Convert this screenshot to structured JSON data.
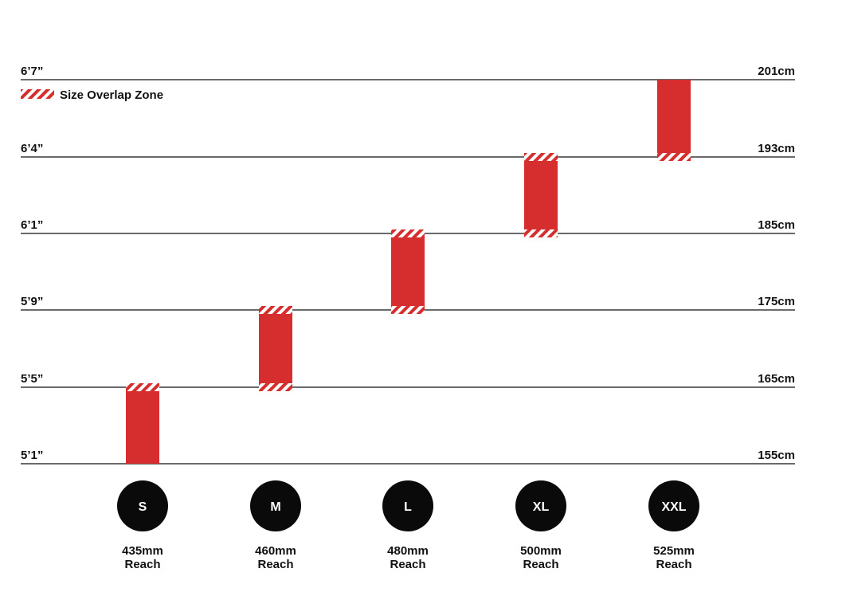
{
  "chart_data": {
    "type": "bar",
    "subtype": "floating-range",
    "legend": {
      "label": "Size Overlap Zone",
      "placement": "top-left"
    },
    "y_levels": [
      {
        "in": "5’1”",
        "cm": "155cm"
      },
      {
        "in": "5’5”",
        "cm": "165cm"
      },
      {
        "in": "5’9”",
        "cm": "175cm"
      },
      {
        "in": "6’1”",
        "cm": "185cm"
      },
      {
        "in": "6’4”",
        "cm": "193cm"
      },
      {
        "in": "6’7”",
        "cm": "201cm"
      }
    ],
    "sizes": [
      {
        "label": "S",
        "reach": "435mm",
        "reach_word": "Reach",
        "from_level": 0,
        "to_level": 1,
        "overlap_bottom": false,
        "overlap_top": true
      },
      {
        "label": "M",
        "reach": "460mm",
        "reach_word": "Reach",
        "from_level": 1,
        "to_level": 2,
        "overlap_bottom": true,
        "overlap_top": true
      },
      {
        "label": "L",
        "reach": "480mm",
        "reach_word": "Reach",
        "from_level": 2,
        "to_level": 3,
        "overlap_bottom": true,
        "overlap_top": true
      },
      {
        "label": "XL",
        "reach": "500mm",
        "reach_word": "Reach",
        "from_level": 3,
        "to_level": 4,
        "overlap_bottom": true,
        "overlap_top": true
      },
      {
        "label": "XXL",
        "reach": "525mm",
        "reach_word": "Reach",
        "from_level": 4,
        "to_level": 5,
        "overlap_bottom": true,
        "overlap_top": false
      }
    ],
    "colors": {
      "bar": "#d62e2e",
      "line": "#111111",
      "badge": "#0a0a0a",
      "badge_text": "#ffffff"
    }
  }
}
